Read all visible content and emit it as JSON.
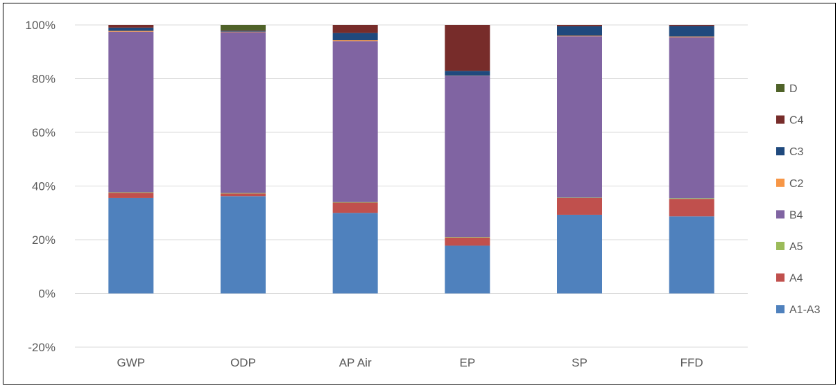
{
  "chart_data": {
    "type": "bar",
    "stacked": true,
    "title": "",
    "xlabel": "",
    "ylabel": "",
    "ylim": [
      -0.2,
      1.0
    ],
    "yticks": [
      "-20%",
      "0%",
      "20%",
      "40%",
      "60%",
      "80%",
      "100%"
    ],
    "grid": true,
    "legend_position": "right",
    "categories": [
      "GWP",
      "ODP",
      "AP Air",
      "EP",
      "SP",
      "FFD"
    ],
    "series": [
      {
        "name": "A1-A3",
        "color": "#4F81BD",
        "values": [
          0.355,
          0.362,
          0.3,
          0.178,
          0.293,
          0.287
        ]
      },
      {
        "name": "A4",
        "color": "#C0504D",
        "values": [
          0.02,
          0.01,
          0.038,
          0.03,
          0.062,
          0.065
        ]
      },
      {
        "name": "A5",
        "color": "#9BBB59",
        "values": [
          0.002,
          0.002,
          0.002,
          0.002,
          0.002,
          0.002
        ]
      },
      {
        "name": "B4",
        "color": "#8064A2",
        "values": [
          0.598,
          0.599,
          0.6,
          0.6,
          0.601,
          0.6
        ]
      },
      {
        "name": "C2",
        "color": "#F79646",
        "values": [
          0.003,
          0.002,
          0.003,
          0.001,
          0.002,
          0.003
        ]
      },
      {
        "name": "C3",
        "color": "#1F497D",
        "values": [
          0.012,
          0.003,
          0.027,
          0.018,
          0.035,
          0.039
        ]
      },
      {
        "name": "C4",
        "color": "#772C2A",
        "values": [
          0.01,
          0.002,
          0.03,
          0.171,
          0.005,
          0.004
        ]
      },
      {
        "name": "D",
        "color": "#4F6228",
        "values": [
          0.0,
          0.02,
          0.0,
          0.0,
          0.0,
          0.0
        ]
      }
    ],
    "legend_order": [
      "D",
      "C4",
      "C3",
      "C2",
      "B4",
      "A5",
      "A4",
      "A1-A3"
    ]
  }
}
